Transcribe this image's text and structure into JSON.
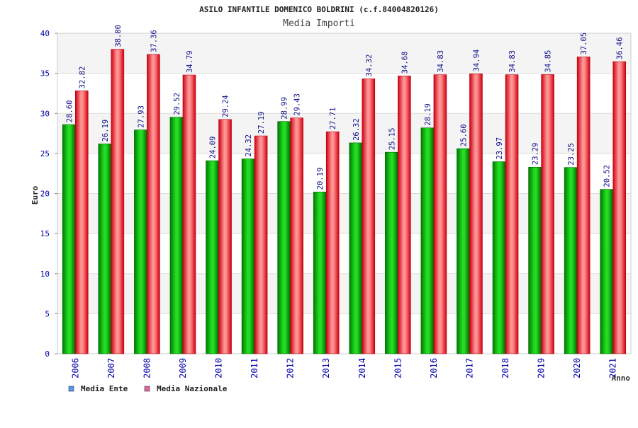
{
  "chart_data": {
    "type": "bar",
    "title": "ASILO INFANTILE DOMENICO BOLDRINI (c.f.84004820126)",
    "subtitle": "Media Importi",
    "xlabel": "Anno",
    "ylabel": "Euro",
    "ylim": [
      0,
      40
    ],
    "yticks": [
      "0",
      "5",
      "10",
      "15",
      "20",
      "25",
      "30",
      "35",
      "40"
    ],
    "categories": [
      "2006",
      "2007",
      "2008",
      "2009",
      "2010",
      "2011",
      "2012",
      "2013",
      "2014",
      "2015",
      "2016",
      "2017",
      "2018",
      "2019",
      "2020",
      "2021"
    ],
    "series": [
      {
        "name": "Media Ente",
        "color": "#00aa00",
        "values": [
          28.6,
          26.19,
          27.93,
          29.52,
          24.09,
          24.32,
          28.99,
          20.19,
          26.32,
          25.15,
          28.19,
          25.6,
          23.97,
          23.29,
          23.25,
          20.52
        ],
        "labels": [
          "28.60",
          "26.19",
          "27.93",
          "29.52",
          "24.09",
          "24.32",
          "28.99",
          "20.19",
          "26.32",
          "25.15",
          "28.19",
          "25.60",
          "23.97",
          "23.29",
          "23.25",
          "20.52"
        ]
      },
      {
        "name": "Media Nazionale",
        "color": "#ee1122",
        "values": [
          32.82,
          38.0,
          37.36,
          34.79,
          29.24,
          27.19,
          29.43,
          27.71,
          34.32,
          34.68,
          34.83,
          34.94,
          34.83,
          34.85,
          37.05,
          36.46
        ],
        "labels": [
          "32.82",
          "38.00",
          "37.36",
          "34.79",
          "29.24",
          "27.19",
          "29.43",
          "27.71",
          "34.32",
          "34.68",
          "34.83",
          "34.94",
          "34.83",
          "34.85",
          "37.05",
          "36.46"
        ]
      }
    ],
    "legend": {
      "position": "bottom-left",
      "items": [
        {
          "label": "Media Ente",
          "color": "#5599ee"
        },
        {
          "label": "Media Nazionale",
          "color": "#dd6699"
        }
      ]
    },
    "grid": true,
    "grid_bands": [
      "#f4f4f4",
      "#ffffff"
    ]
  }
}
